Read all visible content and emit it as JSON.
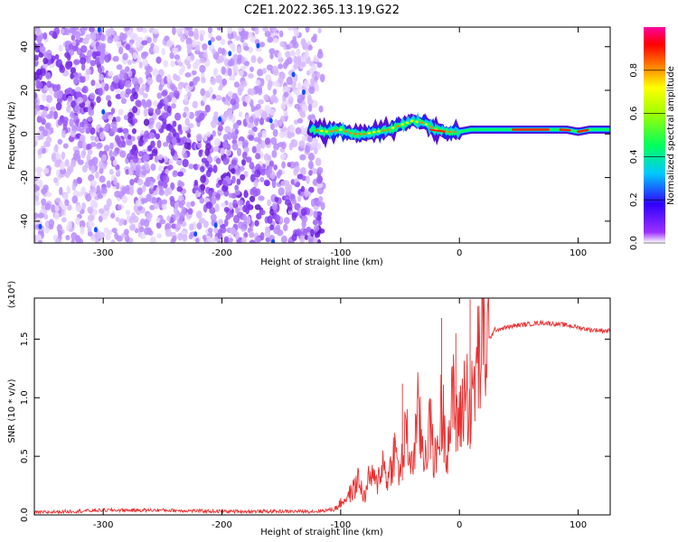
{
  "figure": {
    "title": "C2E1.2022.365.13.19.G22"
  },
  "chart_data": [
    {
      "type": "heatmap",
      "panel": "spectrogram",
      "xlabel": "Height of straight line (km)",
      "ylabel": "Frequency (Hz)",
      "xlim": [
        -358,
        127
      ],
      "ylim": [
        -50,
        49
      ],
      "x_ticks": [
        -300,
        -200,
        -100,
        0,
        100
      ],
      "y_ticks": [
        -40,
        -20,
        0,
        20,
        40
      ],
      "x_tick_labels": [
        "-300",
        "-200",
        "-100",
        "0",
        "100"
      ],
      "y_tick_labels": [
        "-40",
        "-20",
        "0",
        "20",
        "40"
      ],
      "colorbar": {
        "label": "Normalized spectral amplitude",
        "range": [
          0,
          1
        ],
        "ticks": [
          0.0,
          0.2,
          0.4,
          0.6,
          0.8
        ],
        "tick_labels": [
          "0.0",
          "0.2",
          "0.4",
          "0.6",
          "0.8"
        ],
        "colormap": "rainbow (purple-blue-cyan-green-yellow-orange-red-magenta)"
      },
      "regions": [
        {
          "x_range": [
            -358,
            -115
          ],
          "description_freq_range": [
            -50,
            49
          ],
          "amplitude_range": [
            0.0,
            0.2
          ]
        },
        {
          "x_range": [
            -115,
            127
          ],
          "center_frequency": [
            [
              -125,
              2
            ],
            [
              -110,
              1
            ],
            [
              -100,
              2
            ],
            [
              -90,
              0
            ],
            [
              -80,
              0
            ],
            [
              -70,
              1
            ],
            [
              -60,
              2
            ],
            [
              -50,
              4
            ],
            [
              -40,
              6
            ],
            [
              -30,
              5
            ],
            [
              -20,
              2
            ],
            [
              -10,
              1
            ],
            [
              0,
              1
            ],
            [
              10,
              2
            ],
            [
              20,
              2
            ],
            [
              30,
              2
            ],
            [
              40,
              2
            ],
            [
              50,
              2
            ],
            [
              60,
              2
            ],
            [
              70,
              2
            ],
            [
              80,
              2
            ],
            [
              90,
              2
            ],
            [
              100,
              1
            ],
            [
              110,
              2
            ],
            [
              127,
              2
            ]
          ],
          "amplitude_range": [
            0.3,
            1.0
          ]
        }
      ],
      "colors": {
        "low": "#7a1fe0",
        "mid": "#00d0ff",
        "high": "#ff0000"
      }
    },
    {
      "type": "line",
      "panel": "snr",
      "xlabel": "Height of straight line (km)",
      "ylabel": "SNR (10 * v/v)",
      "multiplier_label": "(x10⁴)",
      "xlim": [
        -358,
        127
      ],
      "ylim": [
        0,
        1.85
      ],
      "x_ticks": [
        -300,
        -200,
        -100,
        0,
        100
      ],
      "y_ticks": [
        0.0,
        0.5,
        1.0,
        1.5
      ],
      "x_tick_labels": [
        "-300",
        "-200",
        "-100",
        "0",
        "100"
      ],
      "y_tick_labels": [
        "0.0",
        "0.5",
        "1.0",
        "1.5"
      ],
      "series": [
        {
          "color": "#e83030",
          "x": [
            -358,
            -300,
            -250,
            -200,
            -150,
            -120,
            -105,
            -100,
            -95,
            -90,
            -85,
            -80,
            -75,
            -70,
            -65,
            -60,
            -55,
            -50,
            -45,
            -40,
            -35,
            -30,
            -25,
            -20,
            -15,
            -10,
            -5,
            0,
            5,
            10,
            15,
            20,
            25,
            30,
            40,
            50,
            60,
            70,
            80,
            90,
            100,
            110,
            127
          ],
          "y": [
            0.02,
            0.04,
            0.04,
            0.03,
            0.03,
            0.03,
            0.05,
            0.1,
            0.15,
            0.2,
            0.3,
            0.15,
            0.35,
            0.25,
            0.45,
            0.3,
            0.55,
            0.35,
            0.7,
            0.4,
            0.85,
            0.5,
            0.75,
            0.45,
            0.9,
            0.6,
            1.0,
            0.75,
            1.1,
            0.9,
            1.3,
            1.45,
            1.5,
            1.58,
            1.6,
            1.62,
            1.63,
            1.64,
            1.63,
            1.62,
            1.6,
            1.58,
            1.57
          ]
        }
      ],
      "spikes": [
        {
          "x": -15,
          "y": 1.68
        },
        {
          "x": 9,
          "y": 1.84
        },
        {
          "x": -3,
          "y": 1.55
        },
        {
          "x": -48,
          "y": 1.12
        }
      ]
    }
  ]
}
